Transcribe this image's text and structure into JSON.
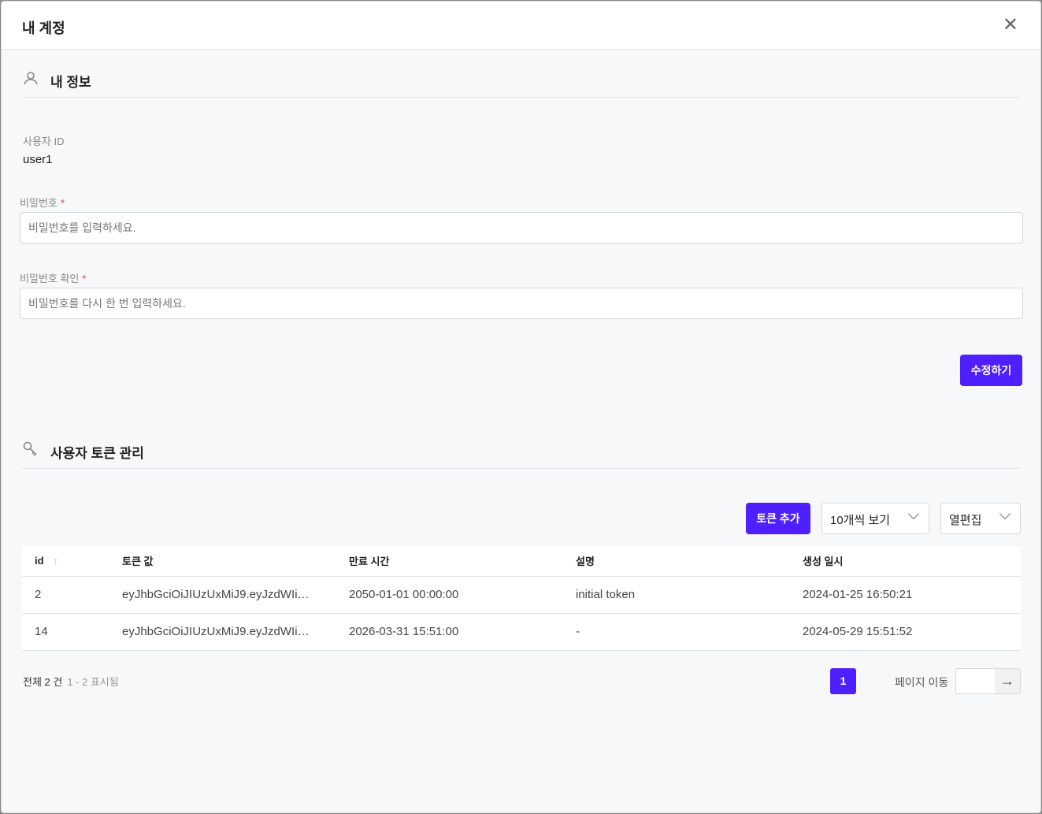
{
  "modal": {
    "title": "내 계정",
    "close_icon": "close-icon"
  },
  "profile": {
    "section_title": "내 정보",
    "section_icon": "user-icon",
    "user_id_label": "사용자 ID",
    "user_id_value": "user1",
    "password_label": "비밀번호",
    "password_placeholder": "비밀번호를 입력하세요.",
    "confirm_label": "비밀번호 확인",
    "confirm_placeholder": "비밀번호를 다시 한 번 입력하세요.",
    "required_mark": "*",
    "submit_label": "수정하기"
  },
  "tokens": {
    "section_title": "사용자 토큰 관리",
    "section_icon": "key-icon",
    "add_label": "토큰 추가",
    "page_size": "10개씩 보기",
    "columns_edit": "열편집",
    "columns": [
      "id",
      "토큰 값",
      "만료 시간",
      "설명",
      "생성 일시"
    ],
    "rows": [
      [
        "2",
        "eyJhbGciOiJIUzUxMiJ9.eyJzdWIi…",
        "2050-01-01 00:00:00",
        "initial token",
        "2024-01-25 16:50:21"
      ],
      [
        "14",
        "eyJhbGciOiJIUzUxMiJ9.eyJzdWIi…",
        "2026-03-31 15:51:00",
        "-",
        "2024-05-29 15:51:52"
      ]
    ],
    "total": "전체 2 건",
    "range": "1 - 2 표시됨",
    "current_page": "1",
    "goto_label": "페이지 이동"
  },
  "colors": {
    "accent": "#4f1fff",
    "background": "#f7f8fa"
  }
}
